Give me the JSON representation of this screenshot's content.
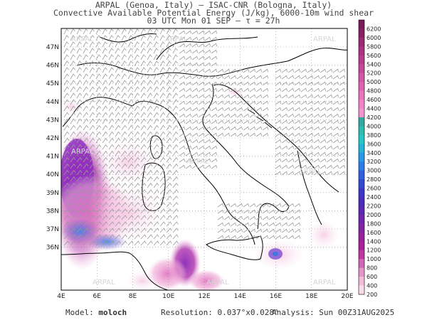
{
  "header": {
    "line1": "ARPAL (Genoa, Italy)  —  ISAC-CNR (Bologna, Italy)",
    "line2": "Convective Available Potential Energy (J/kg), 6000-10m wind shear",
    "line3": "03 UTC Mon 01 SEP  —  τ = 27h"
  },
  "map": {
    "lon_labels": [
      "4E",
      "6E",
      "8E",
      "10E",
      "12E",
      "14E",
      "16E",
      "18E",
      "20E"
    ],
    "lat_labels": [
      "36N",
      "37N",
      "38N",
      "39N",
      "40N",
      "41N",
      "42N",
      "43N",
      "44N",
      "45N",
      "46N",
      "47N"
    ],
    "watermark": "ARPAL",
    "grid": true
  },
  "colorbar": {
    "labels": [
      "6200",
      "6000",
      "5800",
      "5600",
      "5400",
      "5200",
      "5000",
      "4800",
      "4600",
      "4400",
      "4200",
      "4000",
      "3800",
      "3600",
      "3400",
      "3200",
      "3000",
      "2800",
      "2600",
      "2400",
      "2200",
      "2000",
      "1800",
      "1600",
      "1400",
      "1200",
      "1000",
      "800",
      "600",
      "400",
      "200"
    ],
    "colors": [
      "#7a1a58",
      "#8a2064",
      "#9a2a72",
      "#aa3280",
      "#b83c8c",
      "#c64898",
      "#d256a4",
      "#de64b0",
      "#e874bc",
      "#f084c6",
      "#f494cf",
      "#34a8a0",
      "#2cbcb0",
      "#24c8c4",
      "#24b4d8",
      "#2898e8",
      "#2c7ce8",
      "#3060e0",
      "#3448d4",
      "#3c36c8",
      "#4a2cbc",
      "#5a28b4",
      "#6e26aa",
      "#8224a4",
      "#96229c",
      "#a8209a",
      "#c0389e",
      "#d266b6",
      "#e496c8",
      "#f0bcd8",
      "#f8dcea"
    ]
  },
  "footer": {
    "model_label": "Model:",
    "model_value": "moloch",
    "resolution": "Resolution: 0.037°x0.028°",
    "analysis": "Analysis: Sun 00Z31AUG2025"
  }
}
